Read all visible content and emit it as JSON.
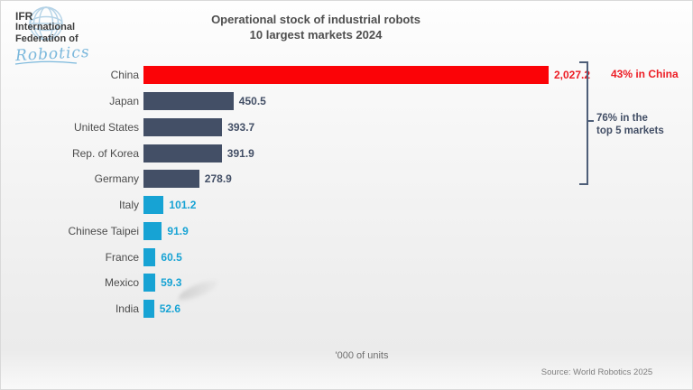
{
  "logo": {
    "abbr": "IFR",
    "name_line1": "International",
    "name_line2": "Federation of",
    "script": "Robotics"
  },
  "title": {
    "line1": "Operational stock of industrial robots",
    "line2": "10 largest markets 2024"
  },
  "chart_data": {
    "type": "bar",
    "orientation": "horizontal",
    "title": "Operational stock of industrial robots — 10 largest markets 2024",
    "xlabel": "'000 of units",
    "xlim": [
      0,
      2100
    ],
    "grid": false,
    "legend": "none",
    "categories": [
      "China",
      "Japan",
      "United States",
      "Rep. of Korea",
      "Germany",
      "Italy",
      "Chinese Taipei",
      "France",
      "Mexico",
      "India"
    ],
    "values": [
      2027.2,
      450.5,
      393.7,
      391.9,
      278.9,
      101.2,
      91.9,
      60.5,
      59.3,
      52.6
    ],
    "value_labels": [
      "2,027.2",
      "450.5",
      "393.7",
      "391.9",
      "278.9",
      "101.2",
      "91.9",
      "60.5",
      "59.3",
      "52.6"
    ],
    "bar_colors": [
      "#fb0307",
      "#434f66",
      "#434f66",
      "#434f66",
      "#434f66",
      "#17a3d4",
      "#17a3d4",
      "#17a3d4",
      "#17a3d4",
      "#17a3d4"
    ],
    "value_label_colors": [
      "#ed1c24",
      "#434f66",
      "#434f66",
      "#434f66",
      "#434f66",
      "#17a3d4",
      "#17a3d4",
      "#17a3d4",
      "#17a3d4",
      "#17a3d4"
    ]
  },
  "annotations": {
    "china_share": "43% in China",
    "top5_line1": "76% in the",
    "top5_line2": "top 5 markets",
    "china_share_color": "#ed1c24",
    "top5_color": "#434f66",
    "bracket_color": "#4e5e78"
  },
  "footer": {
    "units_note": "'000 of units",
    "source": "Source: World Robotics 2025"
  }
}
